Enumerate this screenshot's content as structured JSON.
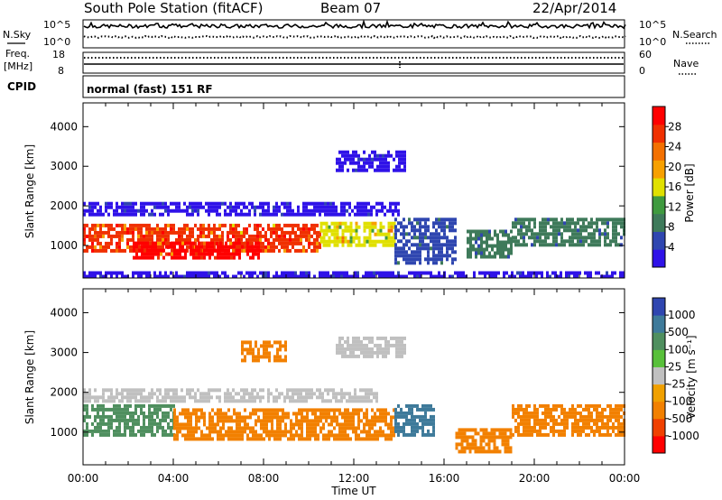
{
  "header": {
    "title": "South Pole Station (fitACF)",
    "beam": "Beam 07",
    "date": "22/Apr/2014"
  },
  "status_panels": {
    "nsky_label": "N.Sky",
    "nsearch_label": "N.Search",
    "noise_ticks": [
      "10^5",
      "10^0"
    ],
    "freq_label_line1": "Freq.",
    "freq_label_line2": "[MHz]",
    "freq_ticks": [
      "18",
      "8"
    ],
    "nave_label": "Nave",
    "nave_ticks": [
      "60",
      "0"
    ],
    "cpid_label": "CPID",
    "cpid_value": "normal (fast) 151 RF"
  },
  "colorbars": {
    "power": {
      "label": "Power [dB]",
      "ticks": [
        "4",
        "8",
        "12",
        "16",
        "20",
        "24",
        "28"
      ],
      "colors": [
        "#2f12e8",
        "#2f46b0",
        "#3e7a5a",
        "#3f9a3f",
        "#e0e000",
        "#f7a000",
        "#f37000",
        "#f03000",
        "#ff0000"
      ]
    },
    "velocity": {
      "label": "Velocity [m s⁻¹]",
      "ticks": [
        "1000",
        "500",
        "100",
        "25",
        "-25",
        "-100",
        "-500",
        "-1000"
      ],
      "colors": [
        "#2f46b0",
        "#3e7a9a",
        "#4f8f5f",
        "#58c03a",
        "#c0c0c0",
        "#f0a000",
        "#f28000",
        "#f04000",
        "#ff0000"
      ]
    }
  },
  "chart_data": [
    {
      "type": "heatmap",
      "title": "Power",
      "xlabel": "Time UT",
      "ylabel": "Slant Range [km]",
      "x_ticks": [
        "00:00",
        "04:00",
        "08:00",
        "12:00",
        "16:00",
        "20:00",
        "00:00"
      ],
      "y_ticks": [
        1000,
        2000,
        3000,
        4000
      ],
      "xlim_hours": [
        0,
        24
      ],
      "ylim_km": [
        180,
        4600
      ],
      "color_scale": "Power [dB]",
      "regions": [
        {
          "t0": 0.0,
          "t1": 10.5,
          "r0": 850,
          "r1": 1550,
          "value": 26
        },
        {
          "t0": 2.2,
          "t1": 7.8,
          "r0": 650,
          "r1": 1100,
          "value": 29
        },
        {
          "t0": 10.5,
          "t1": 13.8,
          "r0": 1000,
          "r1": 1600,
          "value": 18
        },
        {
          "t0": 13.8,
          "t1": 16.5,
          "r0": 600,
          "r1": 1700,
          "value": 8
        },
        {
          "t0": 17.0,
          "t1": 19.0,
          "r0": 700,
          "r1": 1400,
          "value": 10
        },
        {
          "t0": 19.0,
          "t1": 24.0,
          "r0": 1000,
          "r1": 1700,
          "value": 9
        },
        {
          "t0": 0.0,
          "t1": 14.0,
          "r0": 1800,
          "r1": 2100,
          "value": 5
        },
        {
          "t0": 11.2,
          "t1": 14.2,
          "r0": 2900,
          "r1": 3400,
          "value": 5
        },
        {
          "t0": 0.0,
          "t1": 24.0,
          "r0": 200,
          "r1": 350,
          "value": 5
        }
      ]
    },
    {
      "type": "heatmap",
      "title": "Velocity",
      "xlabel": "Time UT",
      "ylabel": "Slant Range [km]",
      "x_ticks": [
        "00:00",
        "04:00",
        "08:00",
        "12:00",
        "16:00",
        "20:00",
        "00:00"
      ],
      "y_ticks": [
        1000,
        2000,
        3000,
        4000
      ],
      "xlim_hours": [
        0,
        24
      ],
      "ylim_km": [
        180,
        4600
      ],
      "color_scale": "Velocity [m s⁻¹]",
      "regions": [
        {
          "t0": 0.0,
          "t1": 4.0,
          "r0": 900,
          "r1": 1700,
          "value": 150
        },
        {
          "t0": 4.0,
          "t1": 13.8,
          "r0": 800,
          "r1": 1600,
          "value": -300
        },
        {
          "t0": 13.8,
          "t1": 15.5,
          "r0": 900,
          "r1": 1700,
          "value": 700
        },
        {
          "t0": 16.5,
          "t1": 19.0,
          "r0": 500,
          "r1": 1100,
          "value": -300
        },
        {
          "t0": 19.0,
          "t1": 24.0,
          "r0": 900,
          "r1": 1700,
          "value": -150
        },
        {
          "t0": 0.0,
          "t1": 13.0,
          "r0": 1800,
          "r1": 2100,
          "value": 0
        },
        {
          "t0": 7.0,
          "t1": 9.0,
          "r0": 2800,
          "r1": 3300,
          "value": -150
        },
        {
          "t0": 11.2,
          "t1": 14.2,
          "r0": 2900,
          "r1": 3400,
          "value": 0
        }
      ]
    }
  ]
}
